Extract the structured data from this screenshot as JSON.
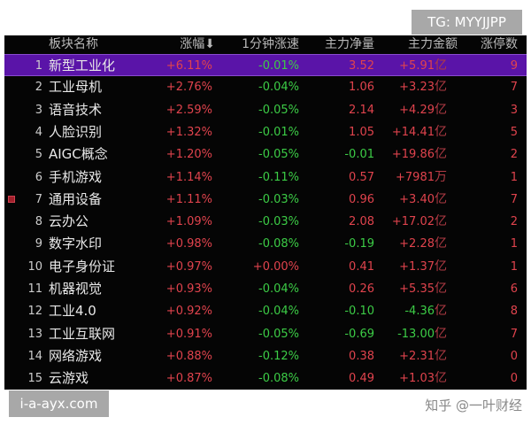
{
  "watermarks": {
    "tg": "TG: MYYJJPP",
    "site": "i-a-ayx.com",
    "zhihu": "知乎 @一叶财经"
  },
  "colors": {
    "up": "#e0434d",
    "down": "#3ccc46",
    "selected": "#5a14a8"
  },
  "header": {
    "name": "板块名称",
    "pct": "涨幅",
    "sort_icon": "arrow-down-icon",
    "speed": "1分钟涨速",
    "net": "主力净量",
    "amount": "主力金额",
    "limit": "涨停数"
  },
  "rows": [
    {
      "idx": "1",
      "name": "新型工业化",
      "pct": "+6.11%",
      "speed": "-0.01%",
      "net": "3.52",
      "amount": "+5.91",
      "unit": "亿",
      "limit": "9",
      "selected": true
    },
    {
      "idx": "2",
      "name": "工业母机",
      "pct": "+2.76%",
      "speed": "-0.04%",
      "net": "1.06",
      "amount": "+3.23",
      "unit": "亿",
      "limit": "7"
    },
    {
      "idx": "3",
      "name": "语音技术",
      "pct": "+2.59%",
      "speed": "-0.05%",
      "net": "2.14",
      "amount": "+4.29",
      "unit": "亿",
      "limit": "3"
    },
    {
      "idx": "4",
      "name": "人脸识别",
      "pct": "+1.32%",
      "speed": "-0.01%",
      "net": "1.05",
      "amount": "+14.41",
      "unit": "亿",
      "limit": "5"
    },
    {
      "idx": "5",
      "name": "AIGC概念",
      "pct": "+1.20%",
      "speed": "-0.05%",
      "net": "-0.01",
      "amount": "+19.86",
      "unit": "亿",
      "limit": "2"
    },
    {
      "idx": "6",
      "name": "手机游戏",
      "pct": "+1.14%",
      "speed": "-0.11%",
      "net": "0.57",
      "amount": "+7981",
      "unit": "万",
      "limit": "1"
    },
    {
      "idx": "7",
      "name": "通用设备",
      "pct": "+1.11%",
      "speed": "-0.03%",
      "net": "0.96",
      "amount": "+3.40",
      "unit": "亿",
      "limit": "7",
      "marked": true
    },
    {
      "idx": "8",
      "name": "云办公",
      "pct": "+1.09%",
      "speed": "-0.03%",
      "net": "2.08",
      "amount": "+17.02",
      "unit": "亿",
      "limit": "2"
    },
    {
      "idx": "9",
      "name": "数字水印",
      "pct": "+0.98%",
      "speed": "-0.08%",
      "net": "-0.19",
      "amount": "+2.28",
      "unit": "亿",
      "limit": "1"
    },
    {
      "idx": "10",
      "name": "电子身份证",
      "pct": "+0.97%",
      "speed": "+0.00%",
      "net": "0.41",
      "amount": "+1.37",
      "unit": "亿",
      "limit": "1"
    },
    {
      "idx": "11",
      "name": "机器视觉",
      "pct": "+0.93%",
      "speed": "-0.04%",
      "net": "0.26",
      "amount": "+5.35",
      "unit": "亿",
      "limit": "6"
    },
    {
      "idx": "12",
      "name": "工业4.0",
      "pct": "+0.92%",
      "speed": "-0.04%",
      "net": "-0.10",
      "amount": "-4.36",
      "unit": "亿",
      "limit": "8"
    },
    {
      "idx": "13",
      "name": "工业互联网",
      "pct": "+0.91%",
      "speed": "-0.05%",
      "net": "-0.69",
      "amount": "-13.00",
      "unit": "亿",
      "limit": "7"
    },
    {
      "idx": "14",
      "name": "网络游戏",
      "pct": "+0.88%",
      "speed": "-0.12%",
      "net": "0.38",
      "amount": "+2.31",
      "unit": "亿",
      "limit": "0"
    },
    {
      "idx": "15",
      "name": "云游戏",
      "pct": "+0.87%",
      "speed": "-0.08%",
      "net": "0.49",
      "amount": "+1.03",
      "unit": "亿",
      "limit": "0"
    }
  ]
}
